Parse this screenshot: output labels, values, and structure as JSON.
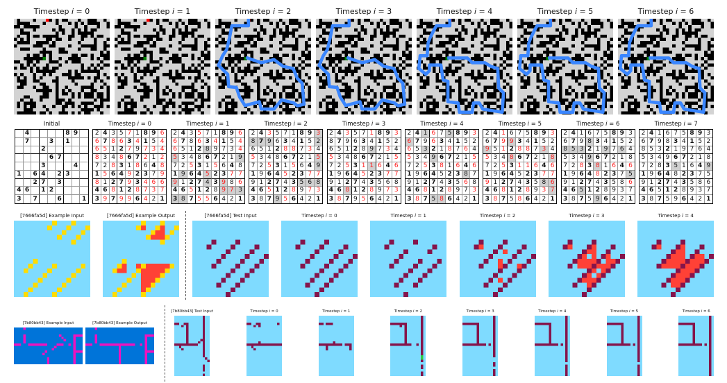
{
  "palette": {
    "maze_open": "#d3d3d3",
    "maze_wall": "#000000",
    "maze_start": "#ff0000",
    "maze_goal": "#008000",
    "maze_path": "#3a86ff",
    "sudoku_changed": "#ff1a1a",
    "sudoku_highlight": "#d0d0d0",
    "arc_background_light": "#7fdbff",
    "arc_dark_red": "#85144b",
    "arc_red": "#ff4136",
    "arc_yellow": "#ffdc00",
    "arc_blue": "#0074d9",
    "arc_magenta": "#f012be",
    "arc_green": "#2ecc40"
  },
  "maze": {
    "panels": [
      {
        "label": "Timestep i = 0"
      },
      {
        "label": "Timestep i = 1"
      },
      {
        "label": "Timestep i = 2"
      },
      {
        "label": "Timestep i = 3"
      },
      {
        "label": "Timestep i = 4"
      },
      {
        "label": "Timestep i = 5"
      },
      {
        "label": "Timestep i = 6"
      }
    ]
  },
  "sudoku": {
    "panels": [
      {
        "label": "Initial",
        "digits": [
          ".4....89.",
          ".7..3.1..",
          "...2.....",
          "....67...",
          "...3...4.",
          "1.64.23..",
          "..27.3...",
          "46.12....",
          "3.7..6..1"
        ],
        "marks": [
          ".........",
          ".........",
          ".........",
          ".........",
          ".........",
          ".........",
          ".........",
          ".........",
          "........."
        ]
      },
      {
        "label": "Timestep i = 0",
        "digits": [
          "243571896",
          "678634154",
          "651279734",
          "834867212",
          "728318648",
          "156492379",
          "812793466",
          "468128737",
          "397996421"
        ],
        "marks": [
          "....r...r",
          "r.rr.r..r",
          "rr..r.rrr",
          "r..r..r.r",
          "..r..r..r",
          ".r..r...r",
          "r...r.rrr",
          "..r..rrrr",
          ".r.rr.r.."
        ]
      },
      {
        "label": "Timestep i = 1",
        "digits": [
          "243571896",
          "678634154",
          "651289734",
          "534867219",
          "725315648",
          "196452377",
          "912743986",
          "465128973",
          "387556421"
        ],
        "marks": [
          "...r....r",
          "r..r.r..r",
          "r...g...r",
          "b.......g",
          "..r..r...",
          ".g..b..rr",
          "b...g.b.r",
          "..r...bbg",
          "gg.rr...."
        ]
      },
      {
        "label": "Timestep i = 2",
        "digits": [
          "243571893",
          "879634152",
          "651288734",
          "534867215",
          "725315649",
          "196452377",
          "912743568",
          "465128973",
          "387956421"
        ],
        "marks": [
          "..r.....b",
          "ggg.....g",
          "....rr.r.",
          "r.......b",
          "..r..r..g",
          "....r..rr",
          "......ggg",
          "..r..r.rr",
          "...gr...."
        ]
      },
      {
        "label": "Timestep i = 3",
        "digits": [
          "243571893",
          "879634152",
          "651289734",
          "534867215",
          "725311646",
          "196452377",
          "912743568",
          "468128973",
          "387956421"
        ],
        "marks": [
          "..r..r..r",
          ".........",
          ".....g.r.",
          "r.......r",
          "..r.rbr.r",
          "....r..rr",
          ".........",
          "..b..r.rr",
          ".r..r...."
        ]
      },
      {
        "label": "Timestep i = 4",
        "digits": [
          "241675893",
          "679634152",
          "653218764",
          "534967215",
          "725381646",
          "196452387",
          "912743568",
          "468128973",
          "387586421"
        ],
        "marks": [
          "..gr.g..r",
          "b..r.....",
          "r.g..r.r.",
          "r..g....r",
          "..r.r.r.r",
          ".......g.",
          ".......r.",
          "..r..r..r",
          ".r.gb...."
        ]
      },
      {
        "label": "Timestep i = 5",
        "digits": [
          "241675893",
          "679934152",
          "951288734",
          "534867218",
          "725311646",
          "196452377",
          "912743586",
          "468128937",
          "387586421"
        ],
        "marks": [
          "..r.....r",
          "..rb.....",
          "b.r.rr.b.",
          "r..b....b",
          "..r.rrr.r",
          ".......rr",
          "r......gb",
          "..r..r.rb",
          ".r..r...."
        ]
      },
      {
        "label": "Timestep i = 6",
        "digits": [
          "241675893",
          "679834152",
          "853219764",
          "534967218",
          "728381646",
          "196482375",
          "912743586",
          "465128937",
          "387596421"
        ],
        "marks": [
          ".........",
          "...g.....",
          "ggg..g.g.",
          "...g.....",
          "..r.b.r.r",
          "....r...g",
          "........r",
          "..g......",
          "....g...."
        ]
      },
      {
        "label": "Timestep i = 7",
        "digits": [
          "241675893",
          "679834152",
          "853219764",
          "534967218",
          "728351649",
          "196482375",
          "912743586",
          "465128937",
          "387596421"
        ],
        "marks": [
          ".........",
          ".........",
          ".........",
          ".........",
          "....g...g",
          ".........",
          ".........",
          ".........",
          "........."
        ]
      }
    ]
  },
  "arc_7666fa5d": {
    "example_input_label": "[7666fa5d] Example Input",
    "example_output_label": "[7666fa5d] Example Output",
    "test_input_label": "[7666fa5d] Test Input",
    "timesteps": [
      {
        "label": "Timestep i = 0"
      },
      {
        "label": "Timestep i = 1"
      },
      {
        "label": "Timestep i = 2"
      },
      {
        "label": "Timestep i = 3"
      },
      {
        "label": "Timestep i = 4"
      }
    ]
  },
  "arc_7b80bb43": {
    "example_input_label": "[7b80bb43] Example Input",
    "example_output_label": "[7b80bb43] Example Output",
    "test_input_label": "[7b80bb43] Test Input",
    "timesteps": [
      {
        "label": "Timestep i = 0"
      },
      {
        "label": "Timestep i = 1"
      },
      {
        "label": "Timestep i = 2"
      },
      {
        "label": "Timestep i = 3"
      },
      {
        "label": "Timestep i = 4"
      },
      {
        "label": "Timestep i = 5"
      },
      {
        "label": "Timestep i = 6"
      }
    ]
  }
}
